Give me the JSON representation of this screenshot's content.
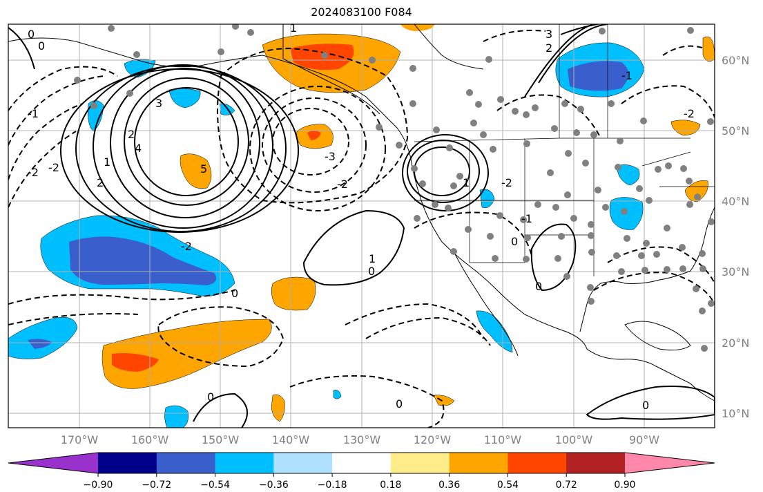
{
  "title": "2024083100 F084",
  "lat_labels": [
    "60°N",
    "50°N",
    "40°N",
    "30°N",
    "20°N",
    "10°N"
  ],
  "lon_labels": [
    "170°W",
    "160°W",
    "150°W",
    "140°W",
    "130°W",
    "120°W",
    "110°W",
    "100°W",
    "90°W"
  ],
  "contour_labels": [
    "0",
    "1",
    "2",
    "3",
    "4",
    "5",
    "-1",
    "-2",
    "-3"
  ],
  "colorbar": {
    "ticks": [
      "−0.90",
      "−0.72",
      "−0.54",
      "−0.36",
      "−0.18",
      "0.18",
      "0.36",
      "0.54",
      "0.72",
      "0.90"
    ],
    "colors": [
      "#9932cc",
      "#00008b",
      "#3a5fcd",
      "#00bfff",
      "#b0e2ff",
      "#ffffff",
      "#ffec8b",
      "#ffa500",
      "#ff4500",
      "#b22222",
      "#ff88aa"
    ]
  },
  "colors": {
    "orange": "#ffa500",
    "red_orange": "#ff4500",
    "blue": "#3a5fcd",
    "sky": "#00bfff",
    "station": "#808080"
  }
}
